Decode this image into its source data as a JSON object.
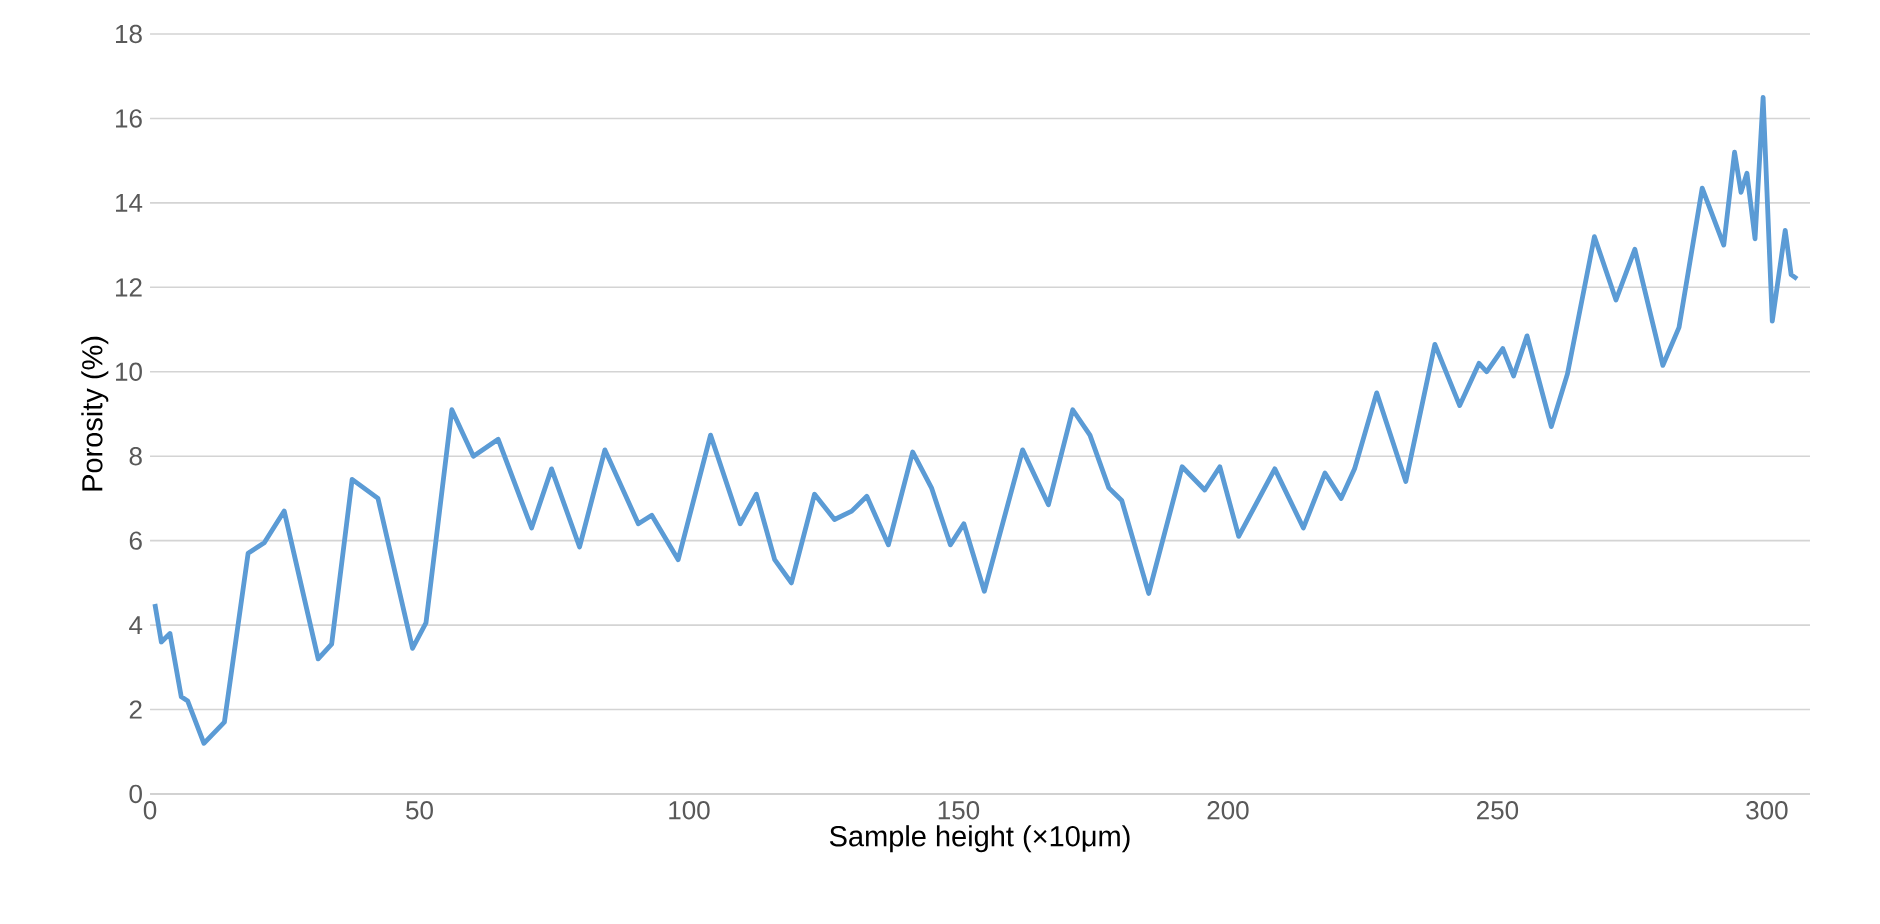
{
  "chart_data": {
    "type": "line",
    "xlabel": "Sample height (×10μm)",
    "ylabel": "Porosity (%)",
    "xlim": [
      0,
      308
    ],
    "ylim": [
      0,
      18
    ],
    "xticks": [
      0,
      50,
      100,
      150,
      200,
      250,
      300
    ],
    "yticks": [
      0,
      2,
      4,
      6,
      8,
      10,
      12,
      14,
      16,
      18
    ],
    "grid": "y",
    "marker": "none",
    "line_style": "solid",
    "series": [
      {
        "color": "#5b9bd5",
        "x": [
          0.9,
          2.1,
          3.7,
          5.8,
          7,
          10,
          13.8,
          18.2,
          21.2,
          24.9,
          31.2,
          33.7,
          37.5,
          42.3,
          48.7,
          51.2,
          56,
          60,
          64.6,
          70.8,
          74.5,
          79.7,
          84.4,
          90.6,
          93.1,
          98,
          104,
          109.5,
          112.5,
          115.9,
          119,
          123.3,
          127,
          130.2,
          133,
          137,
          141.5,
          145,
          148.5,
          151,
          154.8,
          161.9,
          166.7,
          171.2,
          174.4,
          177.9,
          180.3,
          185.3,
          191.5,
          195.7,
          198.5,
          202,
          208.7,
          214,
          218,
          221,
          223.5,
          227.6,
          233,
          238.4,
          243,
          246.6,
          248,
          251,
          253,
          255.5,
          260,
          263,
          268,
          272,
          275.5,
          280.7,
          283.7,
          288,
          292,
          294,
          295.2,
          296.3,
          297.8,
          299.3,
          301,
          303.4,
          304.5,
          305.6
        ],
        "values": [
          4.5,
          3.6,
          3.8,
          2.3,
          2.2,
          1.2,
          1.7,
          5.7,
          5.95,
          6.7,
          3.2,
          3.55,
          7.45,
          7.0,
          3.45,
          4.05,
          9.1,
          8.0,
          8.4,
          6.3,
          7.7,
          5.85,
          8.15,
          6.4,
          6.6,
          5.55,
          8.5,
          6.4,
          7.1,
          5.55,
          5.0,
          7.1,
          6.5,
          6.7,
          7.05,
          5.9,
          8.1,
          7.25,
          5.9,
          6.4,
          4.8,
          8.15,
          6.85,
          9.1,
          8.5,
          7.25,
          6.95,
          4.75,
          7.75,
          7.2,
          7.75,
          6.1,
          7.7,
          6.3,
          7.6,
          7.0,
          7.7,
          9.5,
          7.4,
          10.65,
          9.2,
          10.2,
          10.0,
          10.55,
          9.9,
          10.85,
          8.7,
          9.95,
          13.2,
          11.7,
          12.9,
          10.15,
          11.05,
          14.35,
          13.0,
          15.2,
          14.25,
          14.7,
          13.15,
          16.5,
          11.2,
          13.35,
          12.3,
          12.2
        ]
      }
    ]
  }
}
